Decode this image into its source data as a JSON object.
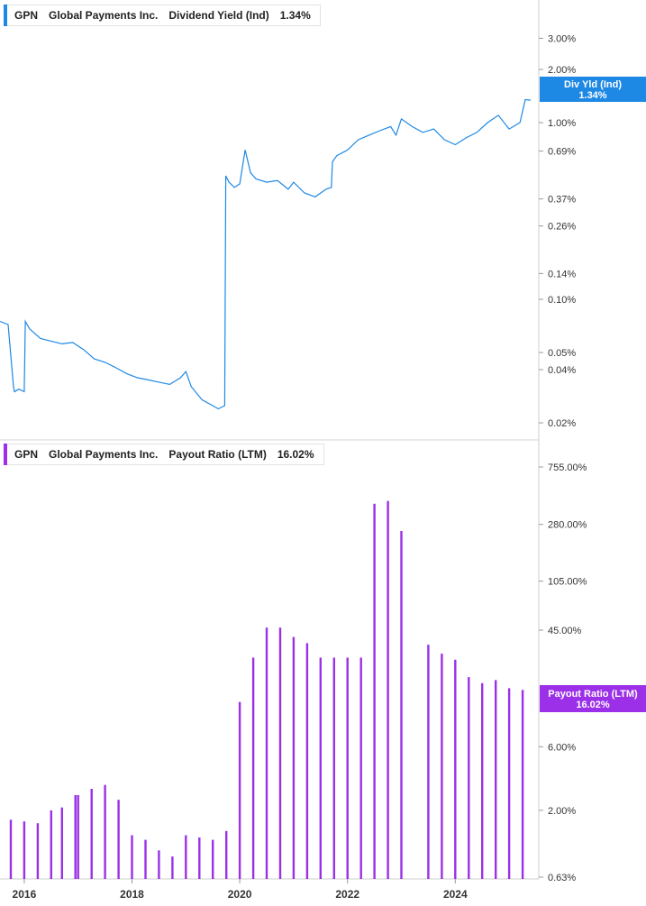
{
  "panels": [
    {
      "ticker": "GPN",
      "company": "Global Payments Inc.",
      "metric": "Dividend Yield (Ind)",
      "value_label": "1.34%",
      "color": "#1e88e5",
      "badge_title": "Div Yld (Ind)",
      "badge_value": "1.34%"
    },
    {
      "ticker": "GPN",
      "company": "Global Payments Inc.",
      "metric": "Payout Ratio (LTM)",
      "value_label": "16.02%",
      "color": "#9b30e8",
      "badge_title": "Payout Ratio (LTM)",
      "badge_value": "16.02%"
    }
  ],
  "chart_data": [
    {
      "type": "line",
      "scale": "log",
      "series": [
        {
          "x": [
            2015.55,
            2015.7,
            2015.8,
            2015.82,
            2015.9,
            2016.0,
            2016.02,
            2016.1,
            2016.3,
            2016.5,
            2016.7,
            2016.9,
            2017.1,
            2017.3,
            2017.5,
            2017.7,
            2017.9,
            2018.1,
            2018.3,
            2018.5,
            2018.7,
            2018.9,
            2019.0,
            2019.1,
            2019.3,
            2019.5,
            2019.6,
            2019.72,
            2019.74,
            2019.8,
            2019.9,
            2020.0,
            2020.1,
            2020.2,
            2020.3,
            2020.5,
            2020.7,
            2020.9,
            2021.0,
            2021.2,
            2021.4,
            2021.6,
            2021.7,
            2021.72,
            2021.8,
            2022.0,
            2022.2,
            2022.4,
            2022.6,
            2022.8,
            2022.9,
            2023.0,
            2023.2,
            2023.4,
            2023.6,
            2023.8,
            2024.0,
            2024.2,
            2024.4,
            2024.6,
            2024.8,
            2025.0,
            2025.2,
            2025.3,
            2025.4
          ],
          "y": [
            0.075,
            0.072,
            0.032,
            0.03,
            0.031,
            0.03,
            0.075,
            0.068,
            0.06,
            0.058,
            0.056,
            0.057,
            0.052,
            0.046,
            0.044,
            0.041,
            0.038,
            0.036,
            0.035,
            0.034,
            0.033,
            0.036,
            0.039,
            0.032,
            0.027,
            0.025,
            0.024,
            0.025,
            0.5,
            0.46,
            0.43,
            0.45,
            0.7,
            0.52,
            0.48,
            0.46,
            0.47,
            0.42,
            0.46,
            0.4,
            0.38,
            0.42,
            0.43,
            0.6,
            0.65,
            0.7,
            0.8,
            0.85,
            0.9,
            0.95,
            0.85,
            1.05,
            0.95,
            0.88,
            0.92,
            0.8,
            0.75,
            0.82,
            0.88,
            1.0,
            1.1,
            0.92,
            1.0,
            1.35,
            1.34
          ]
        }
      ],
      "yticks": [
        "3.00%",
        "2.00%",
        "1.00%",
        "0.69%",
        "0.37%",
        "0.26%",
        "0.14%",
        "0.10%",
        "0.05%",
        "0.04%",
        "0.02%"
      ],
      "ytick_values": [
        3.0,
        2.0,
        1.0,
        0.69,
        0.37,
        0.26,
        0.14,
        0.1,
        0.05,
        0.04,
        0.02
      ],
      "ylim": [
        0.018,
        4.5
      ],
      "xlim": [
        2015.55,
        2025.55
      ]
    },
    {
      "type": "bar",
      "scale": "log",
      "x": [
        2015.75,
        2016.0,
        2016.25,
        2016.5,
        2016.7,
        2016.95,
        2017.0,
        2017.25,
        2017.5,
        2017.75,
        2018.0,
        2018.25,
        2018.5,
        2018.75,
        2019.0,
        2019.25,
        2019.5,
        2019.75,
        2020.0,
        2020.25,
        2020.5,
        2020.75,
        2021.0,
        2021.25,
        2021.5,
        2021.75,
        2022.0,
        2022.25,
        2022.5,
        2022.75,
        2023.0,
        2023.5,
        2023.75,
        2024.0,
        2024.25,
        2024.5,
        2024.75,
        2025.0,
        2025.25
      ],
      "values": [
        1.7,
        1.65,
        1.6,
        2.0,
        2.1,
        2.6,
        2.6,
        2.9,
        3.1,
        2.4,
        1.3,
        1.2,
        1.0,
        0.9,
        1.3,
        1.25,
        1.2,
        1.4,
        13.0,
        28.0,
        47.0,
        47.0,
        40.0,
        36.0,
        28.0,
        28.0,
        28.0,
        28.0,
        400.0,
        420.0,
        250.0,
        35.0,
        30.0,
        27.0,
        20.0,
        18.0,
        19.0,
        16.5,
        16.02
      ],
      "yticks": [
        "755.00%",
        "280.00%",
        "105.00%",
        "45.00%",
        "6.00%",
        "2.00%",
        "0.63%"
      ],
      "ytick_values": [
        755,
        280,
        105,
        45,
        6,
        2,
        0.63
      ],
      "ylim": [
        0.63,
        1000
      ],
      "xticks": [
        "2016",
        "2018",
        "2020",
        "2022",
        "2024"
      ],
      "xtick_values": [
        2016,
        2018,
        2020,
        2022,
        2024
      ],
      "xlim": [
        2015.55,
        2025.55
      ]
    }
  ]
}
